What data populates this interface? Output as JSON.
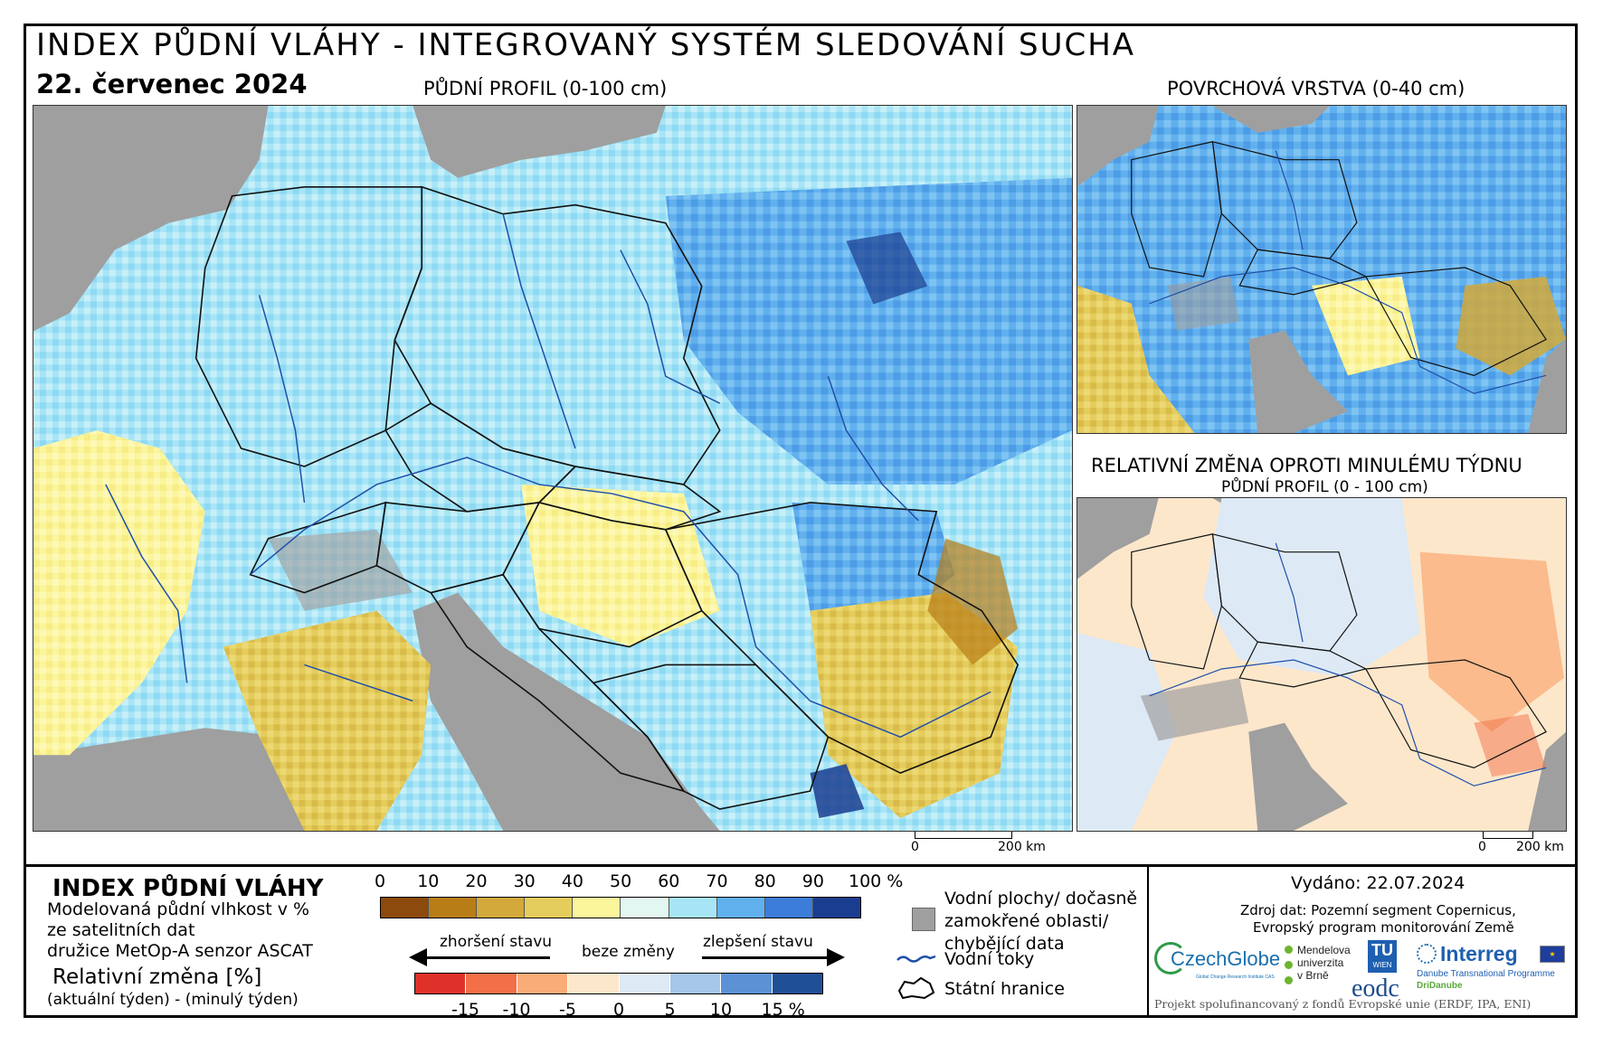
{
  "header": {
    "title": "INDEX PŮDNÍ VLÁHY - INTEGROVANÝ SYSTÉM SLEDOVÁNÍ SUCHA",
    "date": "22. červenec 2024",
    "main_map_label": "PŮDNÍ PROFIL (0-100 cm)",
    "surface_map_label": "POVRCHOVÁ VRSTVA (0-40 cm)",
    "change_map_label": "RELATIVNÍ ZMĚNA OPROTI MINULÉMU TÝDNU",
    "change_map_sublabel": "PŮDNÍ PROFIL (0 - 100 cm)"
  },
  "scalebars": {
    "main": {
      "start": "0",
      "end": "200 km"
    },
    "small": {
      "start": "0",
      "end": "200 km"
    }
  },
  "legend": {
    "title": "INDEX PŮDNÍ VLÁHY",
    "desc_line1": "Modelovaná půdní vlhkost v %",
    "desc_line2": "ze satelitních dat",
    "desc_line3": "družice MetOp-A senzor ASCAT",
    "rel_title": "Relativní změna [%]",
    "rel_sub": "(aktuální týden) - (minulý týden)",
    "moisture_ticks": [
      "0",
      "10",
      "20",
      "30",
      "40",
      "50",
      "60",
      "70",
      "80",
      "90",
      "100 %"
    ],
    "moisture_colors": [
      "#8c4a0c",
      "#b87d17",
      "#d2a93a",
      "#e4cd5c",
      "#fbf59c",
      "#e3f7f2",
      "#a7e5f6",
      "#61b0ee",
      "#3b7dd9",
      "#1b3d8f"
    ],
    "change_ticks": [
      "-15",
      "-10",
      "-5",
      "0",
      "5",
      "10",
      "15 %"
    ],
    "change_colors": [
      "#df3129",
      "#f26f48",
      "#f9ac78",
      "#fde7cb",
      "#dde9f5",
      "#a6c6ea",
      "#5b92d6",
      "#1f4f96"
    ],
    "worse_label": "zhoršení stavu",
    "nochange_label": "beze změny",
    "better_label": "zlepšení stavu",
    "water_label_1": "Vodní plochy/ dočasně",
    "water_label_2": "zamokřené oblasti/",
    "water_label_3": "chybějící data",
    "rivers_label": "Vodní toky",
    "borders_label": "Státní hranice",
    "water_color": "#9f9f9f",
    "river_color": "#1f4fa8"
  },
  "info": {
    "issued": "Vydáno: 22.07.2024",
    "source_line1": "Zdroj dat: Pozemní segment Copernicus,",
    "source_line2": "Evropský program monitorování Země",
    "czechglobe": "CzechGlobe",
    "czechglobe_sub": "Global Change Research Institute CAS",
    "mendel_line1": "Mendelova",
    "mendel_line2": "univerzita",
    "mendel_line3": "v Brně",
    "tu_line1": "TU",
    "tu_line2": "WIEN",
    "eodc": "eodc",
    "interreg": "Interreg",
    "interreg_sub1": "Danube Transnational Programme",
    "interreg_sub2": "DriDanube",
    "funding": "Projekt spolufinancovaný z fondů Evropské unie (ERDF, IPA, ENI)"
  }
}
